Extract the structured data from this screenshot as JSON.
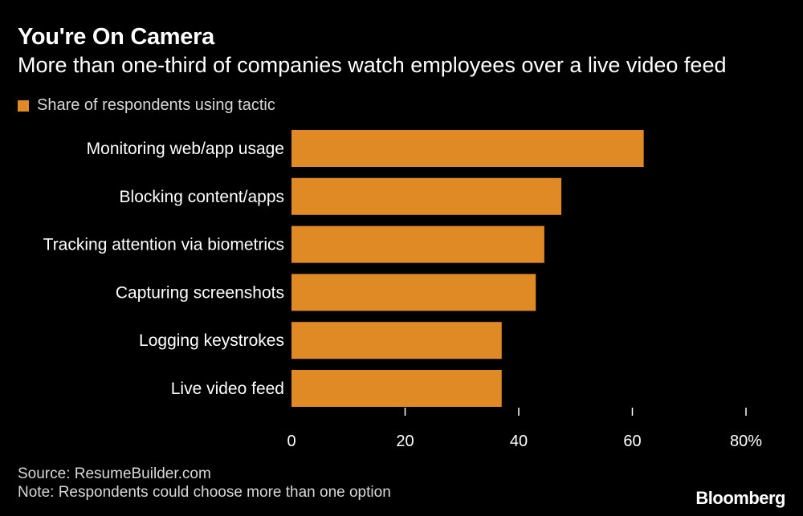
{
  "header": {
    "title": "You're On Camera",
    "subtitle": "More than one-third of companies watch employees over a live video feed"
  },
  "legend": {
    "label": "Share of respondents using tactic"
  },
  "colors": {
    "bar": "#E08A25",
    "background": "#000000",
    "text": "#FFFFFF",
    "muted_text": "#D8D8D8",
    "tick": "#FFFFFF"
  },
  "chart_data": {
    "type": "bar",
    "orientation": "horizontal",
    "categories": [
      "Monitoring web/app usage",
      "Blocking content/apps",
      "Tracking attention via biometrics",
      "Capturing screenshots",
      "Logging keystrokes",
      "Live video feed"
    ],
    "values": [
      62,
      47.5,
      44.5,
      43,
      37,
      37
    ],
    "xlim": [
      0,
      80
    ],
    "xticks": [
      0,
      20,
      40,
      60,
      80
    ],
    "xtick_labels": [
      "0",
      "20",
      "40",
      "60",
      "80%"
    ],
    "grid": false,
    "legend_position": "top-left"
  },
  "footer": {
    "source": "Source: ResumeBuilder.com",
    "note": "Note: Respondents could choose more than one option",
    "brand": "Bloomberg"
  }
}
